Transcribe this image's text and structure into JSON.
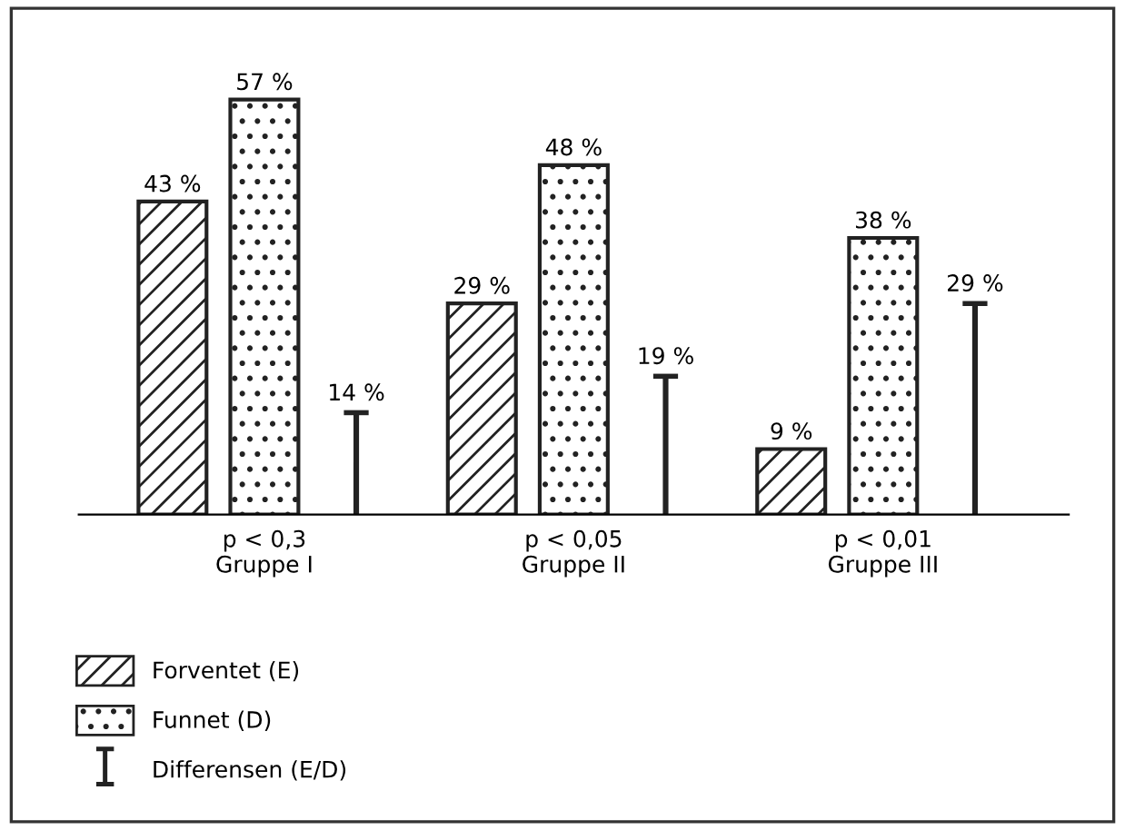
{
  "chart_data": {
    "type": "bar",
    "categories": [
      "p < 0,3\nGruppe I",
      "p < 0,05\nGruppe II",
      "p < 0,01\nGruppe III"
    ],
    "series": [
      {
        "name": "Forventet (E)",
        "color": "#222222",
        "values": [
          43,
          29,
          9
        ],
        "value_labels": [
          "43 %",
          "29 %",
          "9 %"
        ]
      },
      {
        "name": "Funnet (D)",
        "color": "#222222",
        "values": [
          57,
          48,
          38
        ],
        "value_labels": [
          "57 %",
          "48 %",
          "38 %"
        ]
      },
      {
        "name": "Differensen (E/D)",
        "color": "#222222",
        "values": [
          14,
          19,
          29
        ],
        "value_labels": [
          "14 %",
          "19 %",
          "29 %"
        ]
      }
    ],
    "legend": "bottom left",
    "grid": false,
    "tick_labels": "x"
  }
}
